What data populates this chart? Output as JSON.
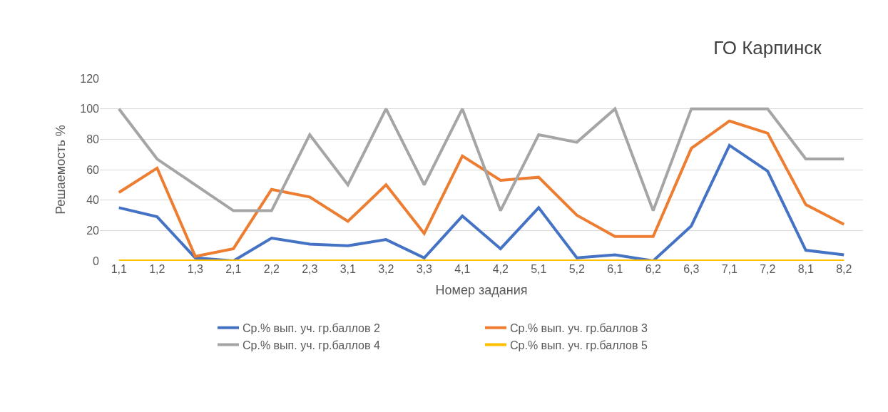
{
  "chart_data": {
    "type": "line",
    "title": "ГО Карпинск",
    "xlabel": "Номер задания",
    "ylabel": "Решаемость %",
    "categories": [
      "1,1",
      "1,2",
      "1,3",
      "2,1",
      "2,2",
      "2,3",
      "3,1",
      "3,2",
      "3,3",
      "4,1",
      "4,2",
      "5,1",
      "5,2",
      "6,1",
      "6,2",
      "6,3",
      "7,1",
      "7,2",
      "8,1",
      "8,2"
    ],
    "series": [
      {
        "name": "Ср.% вып. уч. гр.баллов 2",
        "color": "#4472c4",
        "values": [
          35,
          29,
          2,
          0,
          15,
          11,
          10,
          14,
          2,
          29.5,
          8,
          35,
          2,
          4,
          0,
          23,
          76,
          59,
          7,
          4
        ]
      },
      {
        "name": "Ср.% вып. уч. гр.баллов 3",
        "color": "#ed7d31",
        "values": [
          45,
          61,
          3,
          8,
          47,
          42,
          26,
          50,
          18,
          69,
          53,
          55,
          30,
          16,
          16,
          74,
          92,
          84,
          37,
          24
        ]
      },
      {
        "name": "Ср.% вып. уч. гр.баллов 4",
        "color": "#a5a5a5",
        "values": [
          100,
          67,
          50,
          33,
          33,
          83,
          50,
          100,
          50,
          100,
          33,
          83,
          78,
          100,
          33,
          100,
          100,
          100,
          67,
          67
        ]
      },
      {
        "name": "Ср.% вып. уч. гр.баллов 5",
        "color": "#ffc000",
        "values": [
          0,
          0,
          0,
          0,
          0,
          0,
          0,
          0,
          0,
          0,
          0,
          0,
          0,
          0,
          0,
          0,
          0,
          0,
          0,
          0
        ]
      }
    ],
    "ylim": [
      0,
      120
    ],
    "yticks": [
      0,
      20,
      40,
      60,
      80,
      100,
      120
    ],
    "grid": "y",
    "legend": "bottom",
    "marker": "none",
    "line_style": "solid"
  }
}
